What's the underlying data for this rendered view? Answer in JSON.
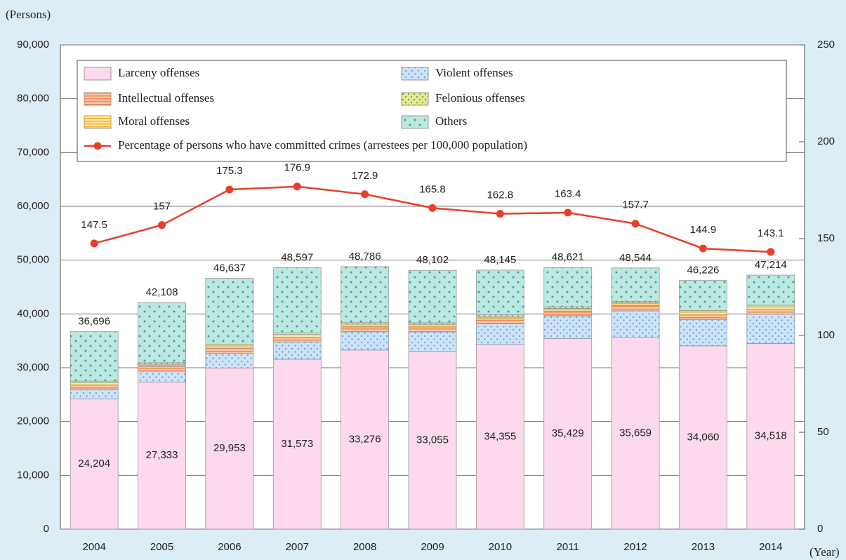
{
  "chart_data": {
    "type": "bar",
    "y_label": "(Persons)",
    "x_label": "(Year)",
    "categories": [
      "2004",
      "2005",
      "2006",
      "2007",
      "2008",
      "2009",
      "2010",
      "2011",
      "2012",
      "2013",
      "2014"
    ],
    "series": [
      {
        "name": "Larceny offenses",
        "color": "#fcd9ec",
        "values": [
          24204,
          27333,
          29953,
          31573,
          33276,
          33055,
          34355,
          35429,
          35659,
          34060,
          34518
        ],
        "value_labels": [
          "24,204",
          "27,333",
          "29,953",
          "31,573",
          "33,276",
          "33,055",
          "34,355",
          "35,429",
          "35,659",
          "34,060",
          "34,518"
        ]
      },
      {
        "name": "Violent offenses",
        "color": "#cfe3f8",
        "values": [
          1700,
          2000,
          2700,
          3200,
          3400,
          3600,
          3800,
          4200,
          4900,
          4900,
          5400
        ]
      },
      {
        "name": "Intellectual offenses",
        "color": "#f9c6a6",
        "values": [
          900,
          900,
          1000,
          900,
          900,
          900,
          900,
          900,
          1000,
          900,
          900
        ]
      },
      {
        "name": "Moral offenses",
        "color": "#fde6a2",
        "values": [
          400,
          400,
          400,
          500,
          500,
          500,
          500,
          500,
          500,
          500,
          500
        ]
      },
      {
        "name": "Felonious offenses",
        "color": "#e4ea98",
        "values": [
          300,
          300,
          300,
          300,
          300,
          300,
          300,
          300,
          300,
          300,
          300
        ]
      },
      {
        "name": "Others",
        "color": "#bde7e1",
        "values": [
          9192,
          11175,
          12284,
          12124,
          10410,
          9747,
          8290,
          7292,
          6185,
          5566,
          5596
        ]
      },
      {
        "name": "Percentage of persons who have committed crimes (arrestees per 100,000 population)",
        "type": "line",
        "axis": "y2",
        "color": "#e6402a",
        "values": [
          147.5,
          157,
          175.3,
          176.9,
          172.9,
          165.8,
          162.8,
          163.4,
          157.7,
          144.9,
          143.1
        ]
      }
    ],
    "totals": [
      36696,
      42108,
      46637,
      48597,
      48786,
      48102,
      48145,
      48621,
      48544,
      46226,
      47214
    ],
    "total_labels": [
      "36,696",
      "42,108",
      "46,637",
      "48,597",
      "48,786",
      "48,102",
      "48,145",
      "48,621",
      "48,544",
      "46,226",
      "47,214"
    ],
    "ylim": [
      0,
      90000
    ],
    "yticks": [
      0,
      {
        "value": 10000,
        "label": "10,000"
      },
      {
        "value": 20000,
        "label": "20,000"
      },
      {
        "value": 30000,
        "label": "30,000"
      },
      {
        "value": 40000,
        "label": "40,000"
      },
      {
        "value": 50000,
        "label": "50,000"
      },
      {
        "value": 60000,
        "label": "60,000"
      },
      {
        "value": 70000,
        "label": "70,000"
      },
      {
        "value": 80000,
        "label": "80,000"
      },
      {
        "value": 90000,
        "label": "90,000"
      }
    ],
    "y2lim": [
      0,
      250
    ],
    "y2ticks": [
      0,
      50,
      100,
      150,
      200,
      250
    ],
    "grid": true
  }
}
